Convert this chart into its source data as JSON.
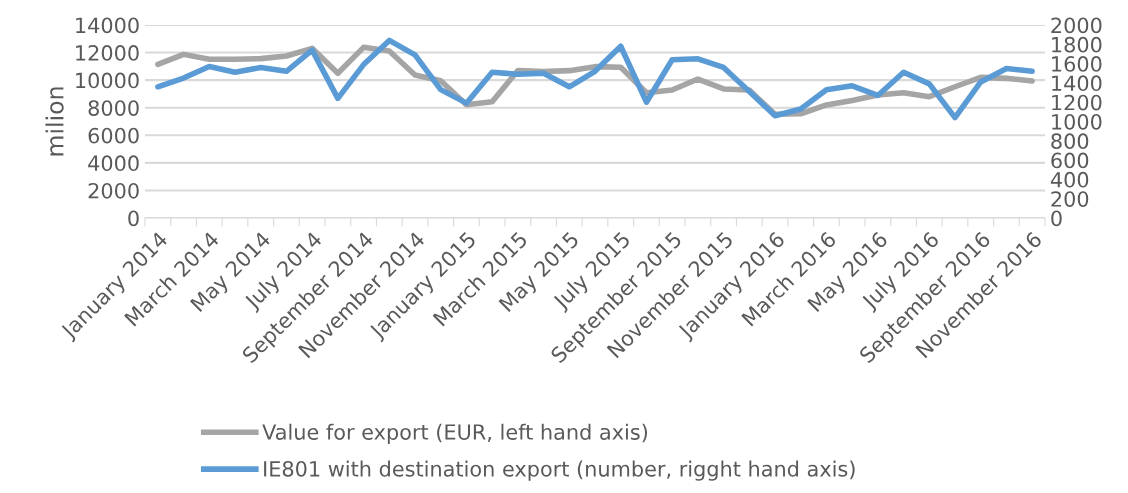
{
  "chart_data": {
    "type": "line",
    "ylabel": "milion",
    "categories": [
      "January 2014",
      null,
      "March 2014",
      null,
      "May 2014",
      null,
      "July 2014",
      null,
      "September 2014",
      null,
      "November 2014",
      null,
      "January 2015",
      null,
      "March 2015",
      null,
      "May 2015",
      null,
      "July 2015",
      null,
      "September 2015",
      null,
      "November 2015",
      null,
      "January 2016",
      null,
      "March 2016",
      null,
      "May 2016",
      null,
      "July 2016",
      null,
      "September 2016",
      null,
      "November 2016"
    ],
    "series": [
      {
        "name": "Value for export (EUR, left hand axis)",
        "color": "#a5a5a5",
        "values": [
          11150,
          11870,
          11510,
          11510,
          11560,
          11750,
          12310,
          10500,
          12380,
          12110,
          10370,
          9960,
          8220,
          8440,
          10690,
          10620,
          10690,
          10980,
          10930,
          9090,
          9280,
          10080,
          9360,
          9280,
          7520,
          7560,
          8200,
          8530,
          8920,
          9090,
          8800,
          9520,
          10200,
          10130,
          9940
        ]
      },
      {
        "name": "IE801 with destination export (number, rigght hand axis)",
        "color": "#5b9bd5",
        "axis": "y2",
        "values": [
          1360,
          1450,
          1570,
          1510,
          1560,
          1520,
          1740,
          1240,
          1590,
          1840,
          1690,
          1330,
          1190,
          1510,
          1490,
          1500,
          1360,
          1520,
          1780,
          1200,
          1640,
          1650,
          1560,
          1310,
          1060,
          1130,
          1330,
          1370,
          1270,
          1510,
          1390,
          1040,
          1410,
          1550,
          1520
        ]
      }
    ],
    "ylim": [
      0,
      14000
    ],
    "yticks": [
      0,
      2000,
      4000,
      6000,
      8000,
      10000,
      12000,
      14000
    ],
    "y2lim": [
      0,
      2000
    ],
    "y2ticks": [
      0,
      200,
      400,
      600,
      800,
      1000,
      1200,
      1400,
      1600,
      1800,
      2000
    ],
    "grid": "y",
    "legend": "bottom",
    "marker": "none",
    "line_style": "solid"
  }
}
